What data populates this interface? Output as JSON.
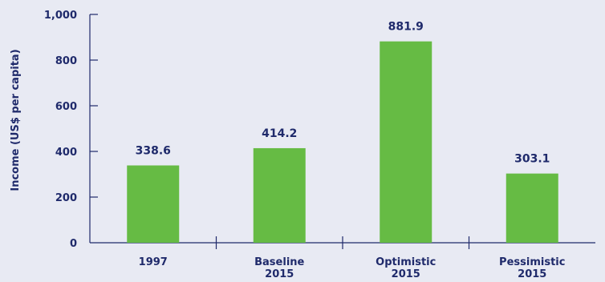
{
  "chart_data": {
    "type": "bar",
    "title": "",
    "xlabel": "",
    "ylabel": "Income (US$ per capita)",
    "ylim": [
      0,
      1000
    ],
    "yticks": [
      0,
      200,
      400,
      600,
      800,
      1000
    ],
    "ytick_labels": [
      "0",
      "200",
      "400",
      "600",
      "800",
      "1,000"
    ],
    "categories": [
      [
        "1997"
      ],
      [
        "Baseline",
        "2015"
      ],
      [
        "Optimistic",
        "2015"
      ],
      [
        "Pessimistic",
        "2015"
      ]
    ],
    "values": [
      338.6,
      414.2,
      881.9,
      303.1
    ],
    "value_labels": [
      "338.6",
      "414.2",
      "881.9",
      "303.1"
    ],
    "bar_color": "#66bb44",
    "text_color": "#1f2a6b",
    "background_color": "#e8eaf3",
    "grid": false,
    "legend": "none"
  }
}
